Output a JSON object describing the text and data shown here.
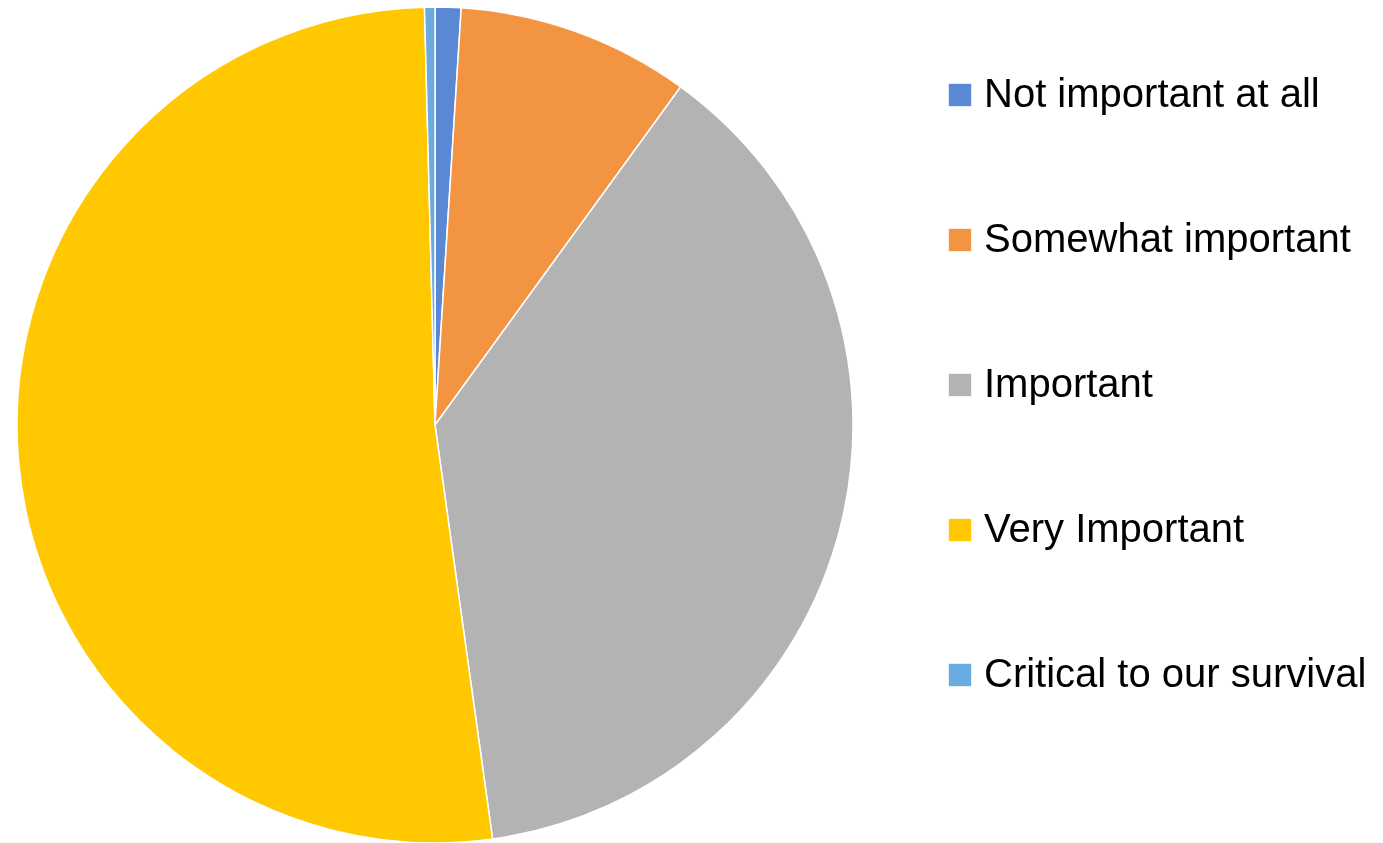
{
  "chart_data": {
    "type": "pie",
    "categories": [
      "Not important at all",
      "Somewhat important",
      "Important",
      "Very Important",
      "Critical to our survival"
    ],
    "values": [
      1,
      9,
      37.8,
      51.8,
      0.4
    ],
    "colors": [
      "#5a88d4",
      "#f29441",
      "#b3b3b3",
      "#ffc800",
      "#6aabe0"
    ],
    "legend": "right"
  }
}
